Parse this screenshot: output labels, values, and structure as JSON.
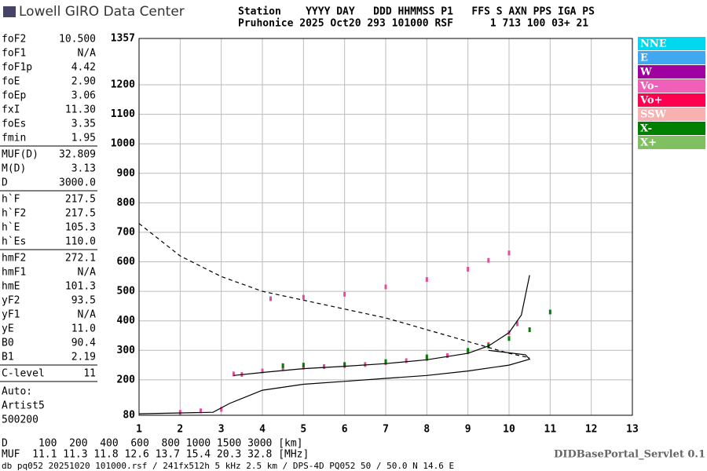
{
  "header": {
    "logo": "Lowell GIRO Data Center",
    "row1": "Station    YYYY DAY   DDD HHMMSS P1   FFS S AXN PPS IGA PS",
    "row2": "Pruhonice 2025 Oct20 293 101000 RSF      1 713 100 03+ 21"
  },
  "params": [
    [
      [
        "foF2",
        "10.500"
      ],
      [
        "foF1",
        "N/A"
      ],
      [
        "foF1p",
        "4.42"
      ],
      [
        "foE",
        "2.90"
      ],
      [
        "foEp",
        "3.06"
      ],
      [
        "fxI",
        "11.30"
      ],
      [
        "foEs",
        "3.35"
      ],
      [
        "fmin",
        "1.95"
      ]
    ],
    [
      [
        "MUF(D)",
        "32.809"
      ],
      [
        "M(D)",
        "3.13"
      ],
      [
        "D",
        "3000.0"
      ]
    ],
    [
      [
        "h`F",
        "217.5"
      ],
      [
        "h`F2",
        "217.5"
      ],
      [
        "h`E",
        "105.3"
      ],
      [
        "h`Es",
        "110.0"
      ]
    ],
    [
      [
        "hmF2",
        "272.1"
      ],
      [
        "hmF1",
        "N/A"
      ],
      [
        "hmE",
        "101.3"
      ],
      [
        "yF2",
        "93.5"
      ],
      [
        "yF1",
        "N/A"
      ],
      [
        "yE",
        "11.0"
      ],
      [
        "B0",
        "90.4"
      ],
      [
        "B1",
        "2.19"
      ]
    ],
    [
      [
        "C-level",
        "11"
      ]
    ]
  ],
  "auto": [
    "Auto:",
    "Artist5",
    "500200"
  ],
  "chart_data": {
    "type": "ionogram",
    "xlim": [
      1,
      13
    ],
    "xticks": [
      1,
      2,
      3,
      4,
      5,
      6,
      7,
      8,
      9,
      10,
      11,
      12,
      13
    ],
    "ylim": [
      80,
      1357
    ],
    "yticks": [
      80,
      200,
      300,
      400,
      500,
      600,
      700,
      800,
      900,
      1000,
      1100,
      1200,
      1357
    ],
    "grid": true,
    "legend": [
      {
        "label": "NNE",
        "color": "#00d8f0"
      },
      {
        "label": "E",
        "color": "#40a8f0"
      },
      {
        "label": "W",
        "color": "#a000a0"
      },
      {
        "label": "Vo-",
        "color": "#f060b8"
      },
      {
        "label": "Vo+",
        "color": "#ff0050"
      },
      {
        "label": "SSW",
        "color": "#f8b0b0"
      },
      {
        "label": "X-",
        "color": "#008000"
      },
      {
        "label": "X+",
        "color": "#80c060"
      }
    ],
    "series": [
      {
        "style": "points",
        "color": "#e0509a",
        "x": [
          3.3,
          3.5,
          4,
          4.5,
          5,
          5.5,
          6,
          6.5,
          7,
          7.5,
          8,
          8.5,
          9,
          9.5,
          10,
          10.2
        ],
        "y": [
          220,
          218,
          230,
          240,
          243,
          245,
          248,
          252,
          258,
          265,
          272,
          282,
          295,
          320,
          360,
          390
        ]
      },
      {
        "style": "points",
        "color": "#008000",
        "x": [
          4.5,
          5,
          6,
          7,
          8,
          9,
          9.5,
          10,
          10.5,
          11
        ],
        "y": [
          248,
          250,
          252,
          262,
          278,
          300,
          315,
          340,
          370,
          430
        ]
      },
      {
        "style": "points",
        "color": "#e0509a",
        "x": [
          4.2,
          5,
          6,
          7,
          8,
          9,
          9.5,
          10
        ],
        "y": [
          475,
          480,
          490,
          515,
          540,
          575,
          605,
          630
        ]
      },
      {
        "style": "points",
        "color": "#e0509a",
        "x": [
          2,
          2.5,
          3
        ],
        "y": [
          90,
          95,
          100
        ]
      },
      {
        "style": "line",
        "color": "#000000",
        "x": [
          3.3,
          4,
          5,
          6,
          7,
          8,
          9,
          9.5,
          10,
          10.3,
          10.5
        ],
        "y": [
          215,
          225,
          238,
          246,
          255,
          268,
          290,
          315,
          360,
          420,
          555
        ]
      },
      {
        "style": "line",
        "color": "#000000",
        "x": [
          1,
          2.8,
          3.2,
          4,
          5,
          6,
          7,
          8,
          9,
          10,
          10.5,
          10.4,
          9.5
        ],
        "y": [
          85,
          90,
          120,
          165,
          185,
          195,
          205,
          215,
          230,
          250,
          270,
          285,
          300
        ]
      },
      {
        "style": "dashed",
        "color": "#000000",
        "x": [
          1,
          2,
          3,
          4,
          5,
          6,
          7,
          8,
          9,
          10,
          10.5
        ],
        "y": [
          730,
          620,
          550,
          500,
          470,
          440,
          410,
          370,
          330,
          290,
          275
        ]
      }
    ]
  },
  "bottom": {
    "d_row": "D     100  200  400  600  800 1000 1500 3000 [km]",
    "muf_row": "MUF  11.1 11.3 11.8 12.6 13.7 15.4 20.3 32.8 [MHz]",
    "servlet": "DIDBasePortal_Servlet 0.1",
    "footer": "db pq052 20251020 101000.rsf / 241fx512h 5 kHz 2.5 km / DPS-4D PQ052 50 / 50.0 N 14.6 E"
  }
}
